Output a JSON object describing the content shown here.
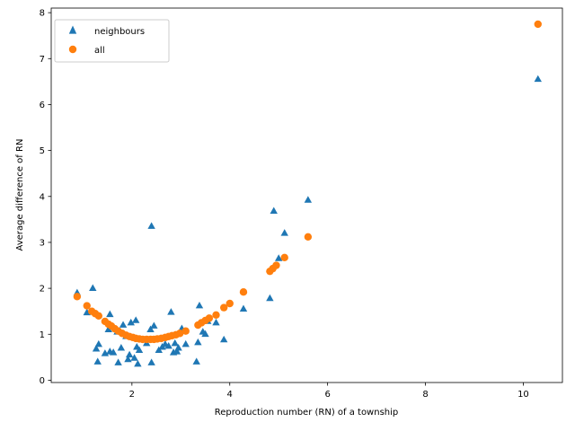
{
  "chart_data": {
    "type": "scatter",
    "xlabel": "Reproduction number (RN) of a township",
    "ylabel": "Average difference of RN",
    "xlim": [
      0.35,
      10.8
    ],
    "ylim": [
      -0.05,
      8.1
    ],
    "xticks": [
      2,
      4,
      6,
      8,
      10
    ],
    "yticks": [
      0,
      1,
      2,
      3,
      4,
      5,
      6,
      7,
      8
    ],
    "grid": false,
    "legend_position": "top-left",
    "series": [
      {
        "name": "neighbours",
        "marker": "triangle",
        "color": "#1f77b4",
        "points": [
          [
            0.88,
            1.9
          ],
          [
            1.08,
            1.47
          ],
          [
            1.2,
            2.0
          ],
          [
            1.27,
            0.68
          ],
          [
            1.3,
            0.4
          ],
          [
            1.32,
            0.78
          ],
          [
            1.45,
            0.58
          ],
          [
            1.52,
            1.1
          ],
          [
            1.55,
            0.62
          ],
          [
            1.55,
            1.43
          ],
          [
            1.62,
            0.6
          ],
          [
            1.7,
            1.05
          ],
          [
            1.72,
            0.38
          ],
          [
            1.78,
            0.7
          ],
          [
            1.82,
            1.2
          ],
          [
            1.88,
            0.95
          ],
          [
            1.92,
            0.45
          ],
          [
            1.95,
            0.55
          ],
          [
            1.98,
            1.25
          ],
          [
            2.05,
            0.48
          ],
          [
            2.08,
            1.3
          ],
          [
            2.1,
            0.72
          ],
          [
            2.12,
            0.35
          ],
          [
            2.15,
            0.65
          ],
          [
            2.3,
            0.8
          ],
          [
            2.38,
            1.1
          ],
          [
            2.4,
            0.38
          ],
          [
            2.4,
            3.35
          ],
          [
            2.45,
            1.18
          ],
          [
            2.55,
            0.65
          ],
          [
            2.62,
            0.72
          ],
          [
            2.68,
            0.78
          ],
          [
            2.75,
            0.74
          ],
          [
            2.8,
            1.48
          ],
          [
            2.85,
            0.6
          ],
          [
            2.88,
            0.8
          ],
          [
            2.92,
            0.62
          ],
          [
            2.95,
            0.7
          ],
          [
            3.02,
            1.12
          ],
          [
            3.1,
            0.78
          ],
          [
            3.32,
            0.4
          ],
          [
            3.35,
            0.82
          ],
          [
            3.38,
            1.62
          ],
          [
            3.45,
            1.05
          ],
          [
            3.5,
            1.0
          ],
          [
            3.55,
            1.28
          ],
          [
            3.72,
            1.25
          ],
          [
            3.88,
            0.88
          ],
          [
            4.28,
            1.55
          ],
          [
            4.82,
            1.78
          ],
          [
            4.9,
            3.68
          ],
          [
            5.0,
            2.65
          ],
          [
            5.12,
            3.2
          ],
          [
            5.6,
            3.92
          ],
          [
            10.3,
            6.55
          ]
        ]
      },
      {
        "name": "all",
        "marker": "circle",
        "color": "#ff7f0e",
        "points": [
          [
            0.88,
            1.82
          ],
          [
            1.08,
            1.62
          ],
          [
            1.18,
            1.5
          ],
          [
            1.25,
            1.45
          ],
          [
            1.32,
            1.4
          ],
          [
            1.45,
            1.28
          ],
          [
            1.52,
            1.22
          ],
          [
            1.58,
            1.18
          ],
          [
            1.65,
            1.12
          ],
          [
            1.72,
            1.07
          ],
          [
            1.8,
            1.02
          ],
          [
            1.88,
            0.98
          ],
          [
            1.95,
            0.95
          ],
          [
            2.02,
            0.93
          ],
          [
            2.08,
            0.91
          ],
          [
            2.15,
            0.9
          ],
          [
            2.22,
            0.89
          ],
          [
            2.3,
            0.89
          ],
          [
            2.38,
            0.89
          ],
          [
            2.45,
            0.89
          ],
          [
            2.52,
            0.9
          ],
          [
            2.6,
            0.91
          ],
          [
            2.68,
            0.93
          ],
          [
            2.75,
            0.95
          ],
          [
            2.82,
            0.97
          ],
          [
            2.9,
            0.99
          ],
          [
            2.98,
            1.02
          ],
          [
            3.1,
            1.07
          ],
          [
            3.35,
            1.2
          ],
          [
            3.42,
            1.25
          ],
          [
            3.5,
            1.3
          ],
          [
            3.58,
            1.35
          ],
          [
            3.72,
            1.42
          ],
          [
            3.88,
            1.58
          ],
          [
            4.0,
            1.67
          ],
          [
            4.28,
            1.92
          ],
          [
            4.82,
            2.37
          ],
          [
            4.88,
            2.43
          ],
          [
            4.95,
            2.5
          ],
          [
            5.12,
            2.67
          ],
          [
            5.6,
            3.12
          ],
          [
            10.3,
            7.75
          ]
        ]
      }
    ]
  }
}
